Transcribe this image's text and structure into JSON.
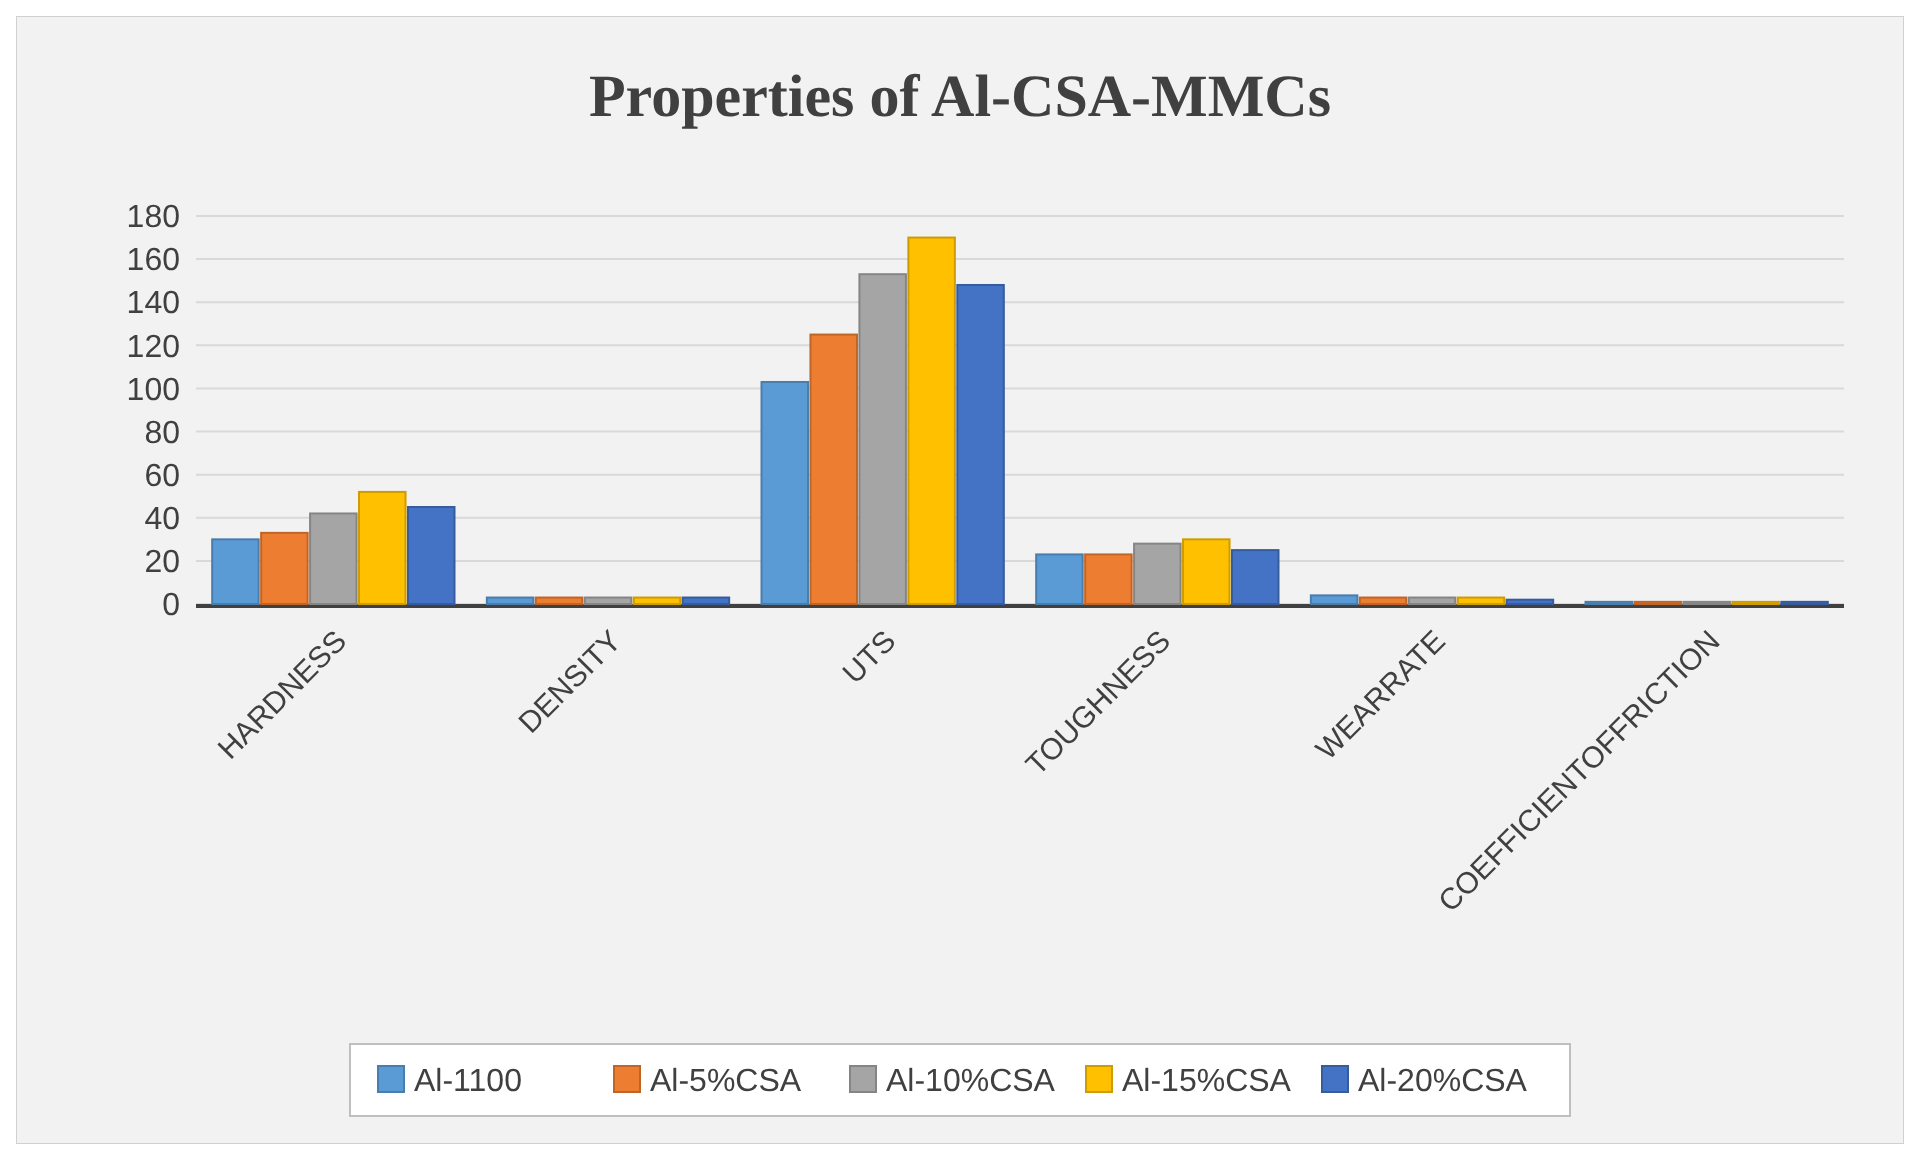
{
  "chart_data": {
    "type": "bar",
    "title": "Properties of Al-CSA-MMCs",
    "categories": [
      "HARDNESS",
      "DENSITY",
      "UTS",
      "TOUGHNESS",
      "WEARRATE",
      "COEFFICIENTOFFRICTION"
    ],
    "series": [
      {
        "name": "Al-1100",
        "color": "#5b9bd5",
        "values": [
          30,
          3,
          103,
          23,
          4,
          1
        ]
      },
      {
        "name": "Al-5%CSA",
        "color": "#ed7d31",
        "values": [
          33,
          3,
          125,
          23,
          3,
          1
        ]
      },
      {
        "name": "Al-10%CSA",
        "color": "#a5a5a5",
        "values": [
          42,
          3,
          153,
          28,
          3,
          1
        ]
      },
      {
        "name": "Al-15%CSA",
        "color": "#ffc000",
        "values": [
          52,
          3,
          170,
          30,
          3,
          1
        ]
      },
      {
        "name": "Al-20%CSA",
        "color": "#4472c4",
        "values": [
          45,
          3,
          148,
          25,
          2,
          1
        ]
      }
    ],
    "ylim": [
      0,
      180
    ],
    "yticks": [
      0,
      20,
      40,
      60,
      80,
      100,
      120,
      140,
      160,
      180
    ],
    "grid": "y",
    "legend": "bottom"
  }
}
